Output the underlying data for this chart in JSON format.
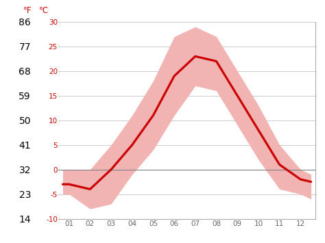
{
  "months": [
    0.7,
    1,
    2,
    3,
    4,
    5,
    6,
    7,
    8,
    9,
    10,
    11,
    12,
    12.5
  ],
  "avg_temp_c": [
    -3,
    -3,
    -4,
    0,
    5,
    11,
    19,
    23,
    22,
    15,
    8,
    1,
    -2,
    -2.5
  ],
  "max_temp_c": [
    0,
    0,
    0,
    5,
    11,
    18,
    27,
    29,
    27,
    20,
    13,
    5,
    0,
    -1
  ],
  "min_temp_c": [
    -5,
    -5,
    -8,
    -7,
    -1,
    4,
    11,
    17,
    16,
    9,
    2,
    -4,
    -5,
    -6
  ],
  "month_labels": [
    "01",
    "02",
    "03",
    "04",
    "05",
    "06",
    "07",
    "08",
    "09",
    "10",
    "11",
    "12"
  ],
  "month_ticks": [
    1,
    2,
    3,
    4,
    5,
    6,
    7,
    8,
    9,
    10,
    11,
    12
  ],
  "line_color": "#cc0000",
  "band_color": "#f2b3b3",
  "zero_line_color": "#888888",
  "grid_color": "#cccccc",
  "axis_color": "#cc0000",
  "bg_color": "#ffffff",
  "ylim_c": [
    -10,
    30
  ],
  "yticks_c": [
    -10,
    -5,
    0,
    5,
    10,
    15,
    20,
    25,
    30
  ],
  "yticks_f": [
    14,
    23,
    32,
    41,
    50,
    59,
    68,
    77,
    86
  ],
  "right_border_color": "#aaaaaa",
  "bottom_border_color": "#aaaaaa"
}
